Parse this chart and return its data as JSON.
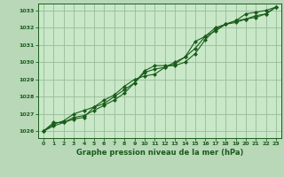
{
  "bg_color": "#b8d8b8",
  "plot_bg_color": "#c8e8c8",
  "grid_color": "#99bb99",
  "line_color": "#1a5c1a",
  "marker_color": "#1a5c1a",
  "title": "Graphe pression niveau de la mer (hPa)",
  "title_color": "#1a5c1a",
  "xlim": [
    -0.5,
    23.5
  ],
  "ylim": [
    1025.6,
    1033.4
  ],
  "yticks": [
    1026,
    1027,
    1028,
    1029,
    1030,
    1031,
    1032,
    1033
  ],
  "xticks": [
    0,
    1,
    2,
    3,
    4,
    5,
    6,
    7,
    8,
    9,
    10,
    11,
    12,
    13,
    14,
    15,
    16,
    17,
    18,
    19,
    20,
    21,
    22,
    23
  ],
  "series1_x": [
    0,
    1,
    2,
    3,
    4,
    5,
    6,
    7,
    8,
    9,
    10,
    11,
    12,
    13,
    14,
    15,
    16,
    17,
    18,
    19,
    20,
    21,
    22,
    23
  ],
  "series1_y": [
    1026.0,
    1026.3,
    1026.5,
    1026.8,
    1026.9,
    1027.2,
    1027.5,
    1027.8,
    1028.2,
    1028.8,
    1029.5,
    1029.8,
    1029.8,
    1029.8,
    1030.0,
    1030.5,
    1031.3,
    1031.9,
    1032.2,
    1032.3,
    1032.5,
    1032.7,
    1032.8,
    1033.2
  ],
  "series2_x": [
    0,
    1,
    2,
    3,
    4,
    5,
    6,
    7,
    8,
    9,
    10,
    11,
    12,
    13,
    14,
    15,
    16,
    17,
    18,
    19,
    20,
    21,
    22,
    23
  ],
  "series2_y": [
    1026.0,
    1026.4,
    1026.6,
    1027.0,
    1027.2,
    1027.4,
    1027.6,
    1028.0,
    1028.4,
    1028.8,
    1029.4,
    1029.6,
    1029.7,
    1030.0,
    1030.3,
    1030.8,
    1031.5,
    1031.8,
    1032.2,
    1032.4,
    1032.8,
    1032.9,
    1033.0,
    1033.2
  ],
  "series3_x": [
    0,
    1,
    2,
    3,
    4,
    5,
    6,
    7,
    8,
    9,
    10,
    11,
    12,
    13,
    14,
    15,
    16,
    17,
    18,
    19,
    20,
    21,
    22,
    23
  ],
  "series3_y": [
    1026.0,
    1026.5,
    1026.5,
    1026.7,
    1026.8,
    1027.4,
    1027.8,
    1028.1,
    1028.6,
    1029.0,
    1029.2,
    1029.3,
    1029.7,
    1029.9,
    1030.3,
    1031.2,
    1031.5,
    1032.0,
    1032.2,
    1032.4,
    1032.5,
    1032.6,
    1032.8,
    1033.2
  ]
}
